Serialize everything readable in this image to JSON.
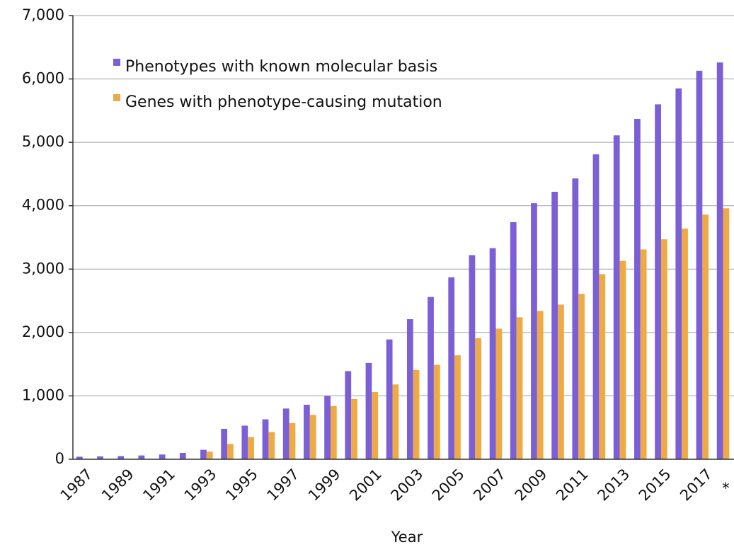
{
  "chart_data": {
    "type": "bar",
    "x_label": "Year",
    "categories": [
      "1987",
      null,
      "1989",
      null,
      "1991",
      null,
      "1993",
      null,
      "1995",
      null,
      "1997",
      null,
      "1999",
      null,
      "2001",
      null,
      "2003",
      null,
      "2005",
      null,
      "2007",
      null,
      "2009",
      null,
      "2011",
      null,
      "2013",
      null,
      "2015",
      null,
      "2017",
      "*"
    ],
    "series": [
      {
        "name": "Phenotypes with known molecular basis",
        "color": "#7b5fd6",
        "values": [
          40,
          45,
          50,
          60,
          75,
          100,
          150,
          480,
          530,
          630,
          800,
          860,
          1000,
          1390,
          1520,
          1890,
          2210,
          2560,
          2870,
          3220,
          3330,
          3740,
          4040,
          4220,
          4430,
          4810,
          5110,
          5370,
          5600,
          5850,
          6130,
          6260
        ]
      },
      {
        "name": "Genes with phenotype-causing mutation",
        "color": "#eeaa44",
        "values": [
          0,
          0,
          0,
          0,
          0,
          0,
          120,
          240,
          350,
          430,
          570,
          700,
          840,
          950,
          1060,
          1180,
          1410,
          1490,
          1640,
          1910,
          2060,
          2240,
          2340,
          2440,
          2610,
          2920,
          3130,
          3310,
          3470,
          3640,
          3860,
          3960
        ]
      }
    ],
    "ylim": [
      0,
      7000
    ],
    "yticks": [
      0,
      {
        "value": 1000,
        "label": "1,000"
      },
      {
        "value": 2000,
        "label": "2,000"
      },
      {
        "value": 3000,
        "label": "3,000"
      },
      {
        "value": 4000,
        "label": "4,000"
      },
      {
        "value": 5000,
        "label": "5,000"
      },
      {
        "value": 6000,
        "label": "6,000"
      },
      {
        "value": 7000,
        "label": "7,000"
      }
    ],
    "grid": true
  }
}
